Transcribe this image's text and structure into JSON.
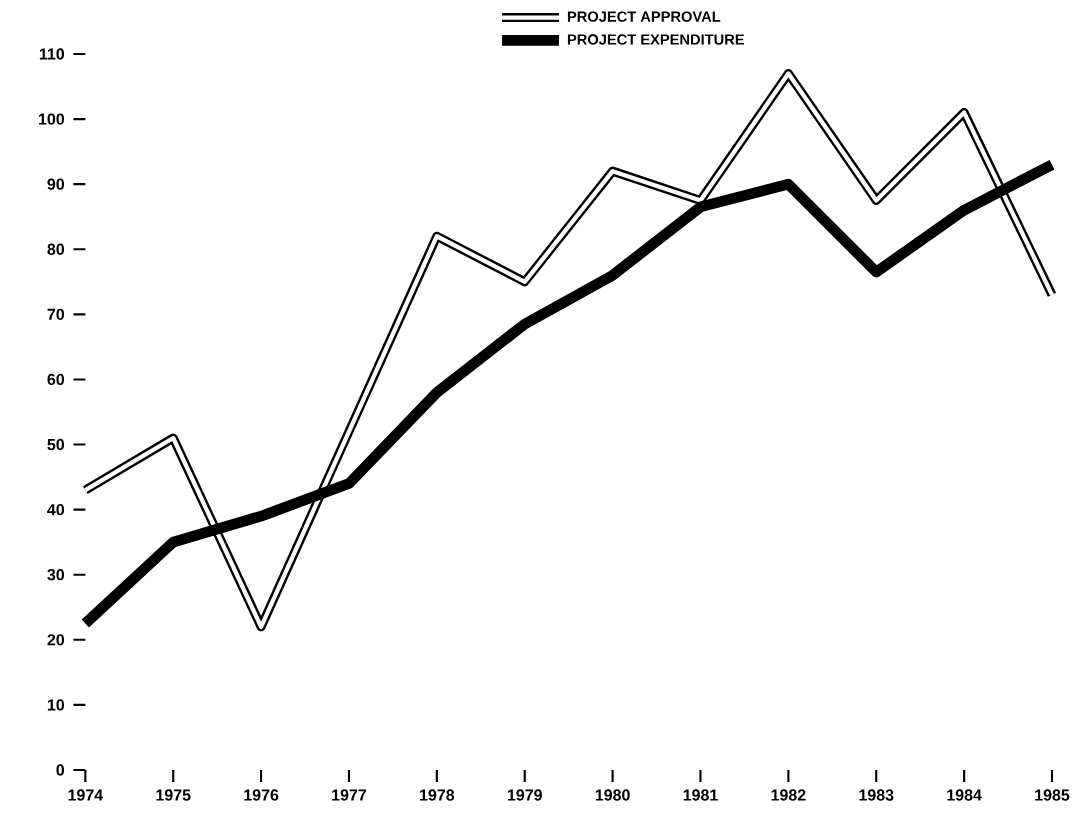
{
  "chart_data": {
    "type": "line",
    "x": [
      1974,
      1975,
      1976,
      1977,
      1978,
      1979,
      1980,
      1981,
      1982,
      1983,
      1984,
      1985
    ],
    "series": [
      {
        "name": "PROJECT APPROVAL",
        "color": "#000000",
        "values": [
          43,
          51,
          22,
          52,
          82,
          75,
          92,
          87.5,
          107,
          87.5,
          101,
          73
        ]
      },
      {
        "name": "PROJECT EXPENDITURE",
        "color": "#000000",
        "values": [
          22.5,
          35,
          39,
          44,
          58,
          68.5,
          76,
          86.5,
          90,
          76.5,
          86,
          93
        ]
      }
    ],
    "xlim": [
      1974,
      1985
    ],
    "ylim": [
      0,
      110
    ],
    "xticks": [
      1974,
      1975,
      1976,
      1977,
      1978,
      1979,
      1980,
      1981,
      1982,
      1983,
      1984,
      1985
    ],
    "yticks": [
      0,
      10,
      20,
      30,
      40,
      50,
      60,
      70,
      80,
      90,
      100,
      110
    ],
    "legend": "top",
    "marker": "none",
    "line_style": "solid",
    "grid": false
  }
}
